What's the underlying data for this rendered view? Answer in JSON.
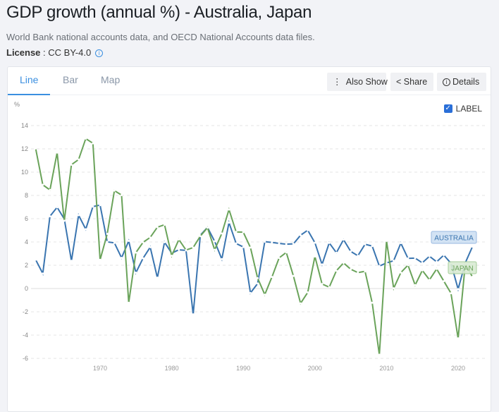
{
  "header": {
    "title": "GDP growth (annual %) - Australia, Japan",
    "source": "World Bank national accounts data, and OECD National Accounts data files.",
    "license_label": "License",
    "license_value": " : CC BY-4.0"
  },
  "tabs": [
    {
      "label": "Line"
    },
    {
      "label": "Bar"
    },
    {
      "label": "Map"
    }
  ],
  "toolbar": {
    "also_show": "Also Show",
    "share": "Share",
    "details": "Details"
  },
  "label_toggle": {
    "label": "LABEL",
    "checked": true
  },
  "chart_data": {
    "type": "line",
    "ylabel": "%",
    "ylim": [
      -6,
      14
    ],
    "xlim": [
      1961,
      2022
    ],
    "yticks": [
      -6,
      -4,
      -2,
      0,
      2,
      4,
      6,
      8,
      10,
      12,
      14
    ],
    "xticks": [
      1970,
      1980,
      1990,
      2000,
      2010,
      2020
    ],
    "grid": "horizontal dashed",
    "x_start": 1961,
    "series": [
      {
        "name": "AUSTRALIA",
        "color": "#3a75b0",
        "values": [
          2.48,
          1.29,
          6.21,
          6.98,
          5.98,
          2.38,
          6.3,
          5.1,
          7.04,
          7.17,
          4.01,
          3.92,
          2.64,
          4.09,
          1.36,
          2.6,
          3.55,
          0.93,
          3.98,
          3.04,
          3.33,
          3.28,
          -2.22,
          4.58,
          5.25,
          4.06,
          2.53,
          5.67,
          3.87,
          3.57,
          -0.38,
          0.43,
          4.03,
          3.96,
          3.88,
          3.81,
          3.84,
          4.58,
          5.01,
          3.94,
          2.07,
          3.92,
          3.08,
          4.2,
          3.19,
          2.82,
          3.8,
          3.65,
          1.93,
          2.2,
          2.39,
          3.9,
          2.59,
          2.61,
          2.21,
          2.77,
          2.3,
          2.87,
          2.17,
          -0.05,
          2.21,
          3.6
        ]
      },
      {
        "name": "JAPAN",
        "color": "#6aa35a",
        "values": [
          12.04,
          8.91,
          8.47,
          11.68,
          5.82,
          10.64,
          11.08,
          12.88,
          12.48,
          2.46,
          4.7,
          8.41,
          8.03,
          -1.23,
          3.09,
          3.97,
          4.39,
          5.27,
          5.48,
          2.82,
          4.21,
          3.31,
          3.52,
          4.5,
          5.23,
          3.33,
          4.73,
          6.79,
          4.86,
          4.84,
          3.52,
          0.9,
          -0.52,
          0.99,
          2.63,
          3.1,
          1.08,
          -1.27,
          -0.33,
          2.76,
          0.39,
          0.12,
          1.53,
          2.2,
          1.66,
          1.37,
          1.48,
          -1.22,
          -5.69,
          4.1,
          0.02,
          1.37,
          2.01,
          0.3,
          1.56,
          0.75,
          1.68,
          0.64,
          -0.4,
          -4.28,
          2.1,
          1.0
        ]
      }
    ]
  }
}
